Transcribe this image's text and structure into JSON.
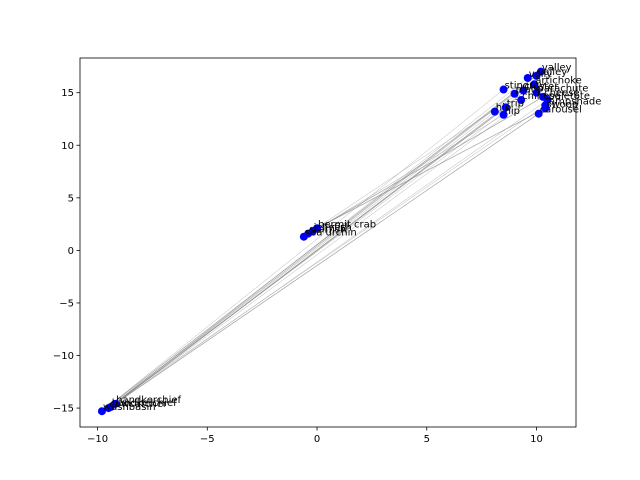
{
  "chart_data": {
    "type": "scatter",
    "title": "",
    "xlabel": "",
    "ylabel": "",
    "xlim": [
      -10.8,
      11.8
    ],
    "ylim": [
      -16.8,
      18.3
    ],
    "xticks": [
      -10,
      -5,
      0,
      5,
      10
    ],
    "yticks": [
      -15,
      -10,
      -5,
      0,
      5,
      10,
      15
    ],
    "grid": false,
    "legend": "none",
    "colors": {
      "point": "#0000ff",
      "line": "#808080",
      "axes": "#000000",
      "background": "#ffffff"
    },
    "points": [
      {
        "label": "valley",
        "x": 10.2,
        "y": 17.0
      },
      {
        "label": "valley",
        "x": 10.0,
        "y": 16.6
      },
      {
        "label": "vally",
        "x": 9.6,
        "y": 16.4
      },
      {
        "label": "artichoke",
        "x": 9.9,
        "y": 15.8
      },
      {
        "label": "stingray",
        "x": 8.5,
        "y": 15.3
      },
      {
        "label": "cluster",
        "x": 9.4,
        "y": 15.2
      },
      {
        "label": "plate",
        "x": 9.0,
        "y": 14.9
      },
      {
        "label": "parachute",
        "x": 10.0,
        "y": 15.0
      },
      {
        "label": "cheese",
        "x": 10.3,
        "y": 14.6
      },
      {
        "label": "paletote",
        "x": 10.5,
        "y": 14.3
      },
      {
        "label": "chinese",
        "x": 9.3,
        "y": 14.3
      },
      {
        "label": "lampshade",
        "x": 10.4,
        "y": 13.8
      },
      {
        "label": "swoop",
        "x": 10.4,
        "y": 13.5
      },
      {
        "label": "trip",
        "x": 8.6,
        "y": 13.6
      },
      {
        "label": "hip",
        "x": 8.1,
        "y": 13.2
      },
      {
        "label": "hip",
        "x": 8.5,
        "y": 12.9
      },
      {
        "label": "carousel",
        "x": 10.1,
        "y": 13.0
      },
      {
        "label": "hermit crab",
        "x": 0.0,
        "y": 2.1
      },
      {
        "label": "jellyfish",
        "x": -0.2,
        "y": 1.8
      },
      {
        "label": "starfish",
        "x": -0.4,
        "y": 1.6
      },
      {
        "label": "sea urchin",
        "x": -0.6,
        "y": 1.3
      },
      {
        "label": "handkerchief",
        "x": -9.2,
        "y": -14.6
      },
      {
        "label": "handkerchief",
        "x": -9.4,
        "y": -14.9
      },
      {
        "label": "cowcatcher",
        "x": -9.5,
        "y": -15.0
      },
      {
        "label": "washbasin",
        "x": -9.8,
        "y": -15.3
      }
    ],
    "links": [
      [
        0,
        24
      ],
      [
        1,
        23
      ],
      [
        2,
        22
      ],
      [
        3,
        21
      ],
      [
        4,
        24
      ],
      [
        6,
        23
      ],
      [
        8,
        20
      ],
      [
        9,
        21
      ],
      [
        11,
        24
      ],
      [
        13,
        21
      ],
      [
        14,
        23
      ],
      [
        15,
        18
      ],
      [
        16,
        21
      ],
      [
        5,
        19
      ],
      [
        7,
        22
      ],
      [
        12,
        17
      ],
      [
        10,
        24
      ]
    ]
  }
}
